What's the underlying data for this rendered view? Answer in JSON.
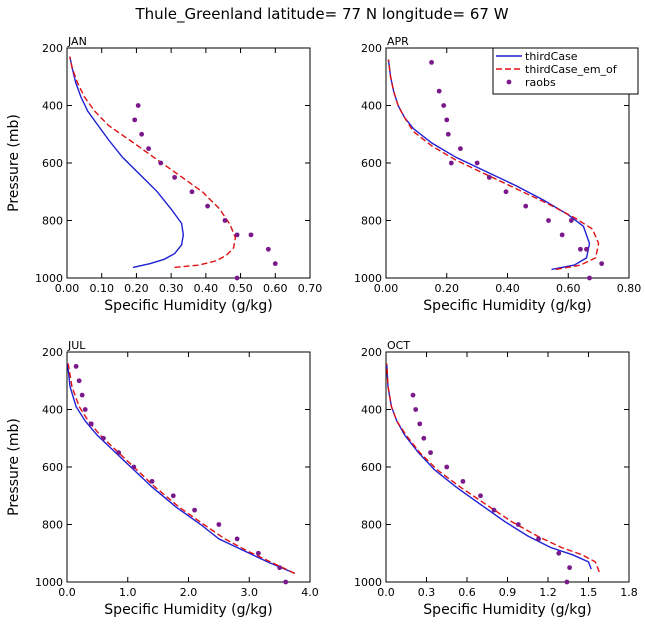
{
  "figure": {
    "title": "Thule_Greenland  latitude= 77 N longitude= 67 W"
  },
  "colors": {
    "thirdCase": "#1f1fd6",
    "thirdCase_em_of": "#e01010",
    "raobs": "#7a1a8a"
  },
  "chart_data": [
    {
      "type": "line",
      "panel_title": "JAN",
      "xlabel": "Specific Humidity (g/kg)",
      "ylabel": "Pressure (mb)",
      "xlim": [
        0,
        0.7
      ],
      "ylim": [
        1000,
        200
      ],
      "xticks": [
        0,
        0.1,
        0.2,
        0.3,
        0.4,
        0.5,
        0.6,
        0.7
      ],
      "xtick_labels": [
        "0.00",
        "0.10",
        "0.20",
        "0.30",
        "0.40",
        "0.50",
        "0.60",
        "0.70"
      ],
      "yticks": [
        200,
        400,
        600,
        800,
        1000
      ],
      "ytick_labels": [
        "200",
        "400",
        "600",
        "800",
        "1000"
      ],
      "legend": null,
      "series": [
        {
          "name": "thirdCase",
          "style": "solid",
          "x": [
            0.19,
            0.24,
            0.28,
            0.31,
            0.33,
            0.335,
            0.33,
            0.3,
            0.26,
            0.21,
            0.16,
            0.12,
            0.09,
            0.06,
            0.04,
            0.025,
            0.015,
            0.008
          ],
          "y": [
            963,
            950,
            935,
            915,
            885,
            850,
            810,
            760,
            700,
            640,
            580,
            520,
            470,
            420,
            370,
            320,
            270,
            230
          ]
        },
        {
          "name": "thirdCase_em_of",
          "style": "dashed",
          "x": [
            0.31,
            0.38,
            0.43,
            0.46,
            0.48,
            0.485,
            0.47,
            0.44,
            0.39,
            0.32,
            0.25,
            0.18,
            0.12,
            0.08,
            0.05,
            0.03,
            0.015,
            0.008
          ],
          "y": [
            963,
            955,
            940,
            920,
            895,
            860,
            815,
            760,
            700,
            640,
            580,
            520,
            470,
            420,
            370,
            320,
            270,
            230
          ]
        },
        {
          "name": "raobs",
          "style": "markers",
          "x": [
            0.205,
            0.195,
            0.215,
            0.235,
            0.27,
            0.31,
            0.36,
            0.405,
            0.455,
            0.49,
            0.53,
            0.58,
            0.6,
            0.49
          ],
          "y": [
            400,
            450,
            500,
            550,
            600,
            650,
            700,
            750,
            800,
            850,
            850,
            900,
            950,
            1000
          ]
        }
      ]
    },
    {
      "type": "line",
      "panel_title": "APR",
      "xlabel": "Specific Humidity (g/kg)",
      "ylabel": "",
      "xlim": [
        0,
        0.8
      ],
      "ylim": [
        1000,
        200
      ],
      "xticks": [
        0,
        0.2,
        0.4,
        0.6,
        0.8
      ],
      "xtick_labels": [
        "0.00",
        "0.20",
        "0.40",
        "0.60",
        "0.80"
      ],
      "yticks": [
        200,
        400,
        600,
        800,
        1000
      ],
      "ytick_labels": [
        "200",
        "400",
        "600",
        "800",
        "1000"
      ],
      "legend": {
        "position": "top-right",
        "entries": [
          "thirdCase",
          "thirdCase_em_of",
          "raobs"
        ]
      },
      "series": [
        {
          "name": "thirdCase",
          "style": "solid",
          "x": [
            0.545,
            0.62,
            0.66,
            0.67,
            0.65,
            0.6,
            0.52,
            0.43,
            0.33,
            0.23,
            0.15,
            0.09,
            0.06,
            0.04,
            0.025,
            0.015,
            0.008
          ],
          "y": [
            970,
            955,
            930,
            880,
            820,
            780,
            730,
            680,
            630,
            580,
            530,
            480,
            440,
            400,
            350,
            300,
            240
          ]
        },
        {
          "name": "thirdCase_em_of",
          "style": "dashed",
          "x": [
            0.56,
            0.64,
            0.69,
            0.7,
            0.68,
            0.62,
            0.53,
            0.43,
            0.33,
            0.23,
            0.15,
            0.09,
            0.06,
            0.04,
            0.025,
            0.015,
            0.008
          ],
          "y": [
            970,
            955,
            930,
            880,
            830,
            790,
            740,
            690,
            640,
            590,
            540,
            490,
            440,
            400,
            350,
            300,
            240
          ]
        },
        {
          "name": "raobs",
          "style": "markers",
          "x": [
            0.15,
            0.175,
            0.19,
            0.2,
            0.205,
            0.215,
            0.245,
            0.3,
            0.34,
            0.395,
            0.46,
            0.535,
            0.58,
            0.61,
            0.64,
            0.66,
            0.71,
            0.67
          ],
          "y": [
            250,
            350,
            400,
            450,
            500,
            600,
            550,
            600,
            650,
            700,
            750,
            800,
            850,
            800,
            900,
            900,
            950,
            1000
          ]
        }
      ]
    },
    {
      "type": "line",
      "panel_title": "JUL",
      "xlabel": "Specific Humidity (g/kg)",
      "ylabel": "Pressure (mb)",
      "xlim": [
        0,
        4.0
      ],
      "ylim": [
        1000,
        200
      ],
      "xticks": [
        0,
        1,
        2,
        3,
        4
      ],
      "xtick_labels": [
        "0.0",
        "1.0",
        "2.0",
        "3.0",
        "4.0"
      ],
      "yticks": [
        200,
        400,
        600,
        800,
        1000
      ],
      "ytick_labels": [
        "200",
        "400",
        "600",
        "800",
        "1000"
      ],
      "legend": null,
      "series": [
        {
          "name": "thirdCase",
          "style": "solid",
          "x": [
            3.75,
            3.3,
            2.9,
            2.5,
            2.2,
            1.8,
            1.4,
            1.05,
            0.75,
            0.5,
            0.3,
            0.15,
            0.05,
            0.01
          ],
          "y": [
            970,
            930,
            890,
            850,
            800,
            740,
            670,
            600,
            540,
            490,
            440,
            390,
            320,
            240
          ]
        },
        {
          "name": "thirdCase_em_of",
          "style": "dashed",
          "x": [
            3.75,
            3.35,
            2.95,
            2.6,
            2.25,
            1.85,
            1.45,
            1.1,
            0.8,
            0.55,
            0.35,
            0.2,
            0.08,
            0.02
          ],
          "y": [
            970,
            930,
            890,
            850,
            800,
            740,
            670,
            600,
            540,
            490,
            440,
            390,
            320,
            240
          ]
        },
        {
          "name": "raobs",
          "style": "markers",
          "x": [
            0.15,
            0.2,
            0.25,
            0.3,
            0.4,
            0.6,
            0.85,
            1.1,
            1.4,
            1.75,
            2.1,
            2.5,
            2.8,
            3.15,
            3.5,
            3.6
          ],
          "y": [
            250,
            300,
            350,
            400,
            450,
            500,
            550,
            600,
            650,
            700,
            750,
            800,
            850,
            900,
            950,
            1000
          ]
        }
      ]
    },
    {
      "type": "line",
      "panel_title": "OCT",
      "xlabel": "Specific Humidity (g/kg)",
      "ylabel": "",
      "xlim": [
        0,
        1.8
      ],
      "ylim": [
        1000,
        200
      ],
      "xticks": [
        0,
        0.3,
        0.6,
        0.9,
        1.2,
        1.5,
        1.8
      ],
      "xtick_labels": [
        "0.0",
        "0.3",
        "0.6",
        "0.9",
        "1.2",
        "1.5",
        "1.8"
      ],
      "yticks": [
        200,
        400,
        600,
        800,
        1000
      ],
      "ytick_labels": [
        "200",
        "400",
        "600",
        "800",
        "1000"
      ],
      "legend": null,
      "series": [
        {
          "name": "thirdCase",
          "style": "solid",
          "x": [
            1.52,
            1.5,
            1.38,
            1.22,
            1.05,
            0.88,
            0.7,
            0.52,
            0.36,
            0.24,
            0.14,
            0.08,
            0.04,
            0.015,
            0.005
          ],
          "y": [
            955,
            930,
            905,
            880,
            840,
            790,
            730,
            670,
            610,
            550,
            490,
            440,
            390,
            320,
            240
          ]
        },
        {
          "name": "thirdCase_em_of",
          "style": "dashed",
          "x": [
            1.58,
            1.55,
            1.45,
            1.3,
            1.12,
            0.93,
            0.74,
            0.55,
            0.38,
            0.25,
            0.15,
            0.08,
            0.04,
            0.015,
            0.005
          ],
          "y": [
            965,
            930,
            905,
            880,
            840,
            790,
            730,
            670,
            610,
            550,
            490,
            440,
            390,
            320,
            240
          ]
        },
        {
          "name": "raobs",
          "style": "markers",
          "x": [
            0.2,
            0.22,
            0.25,
            0.28,
            0.33,
            0.45,
            0.57,
            0.7,
            0.8,
            0.98,
            1.13,
            1.28,
            1.36,
            1.34
          ],
          "y": [
            350,
            400,
            450,
            500,
            550,
            600,
            650,
            700,
            750,
            800,
            850,
            900,
            950,
            1000
          ]
        }
      ]
    }
  ]
}
